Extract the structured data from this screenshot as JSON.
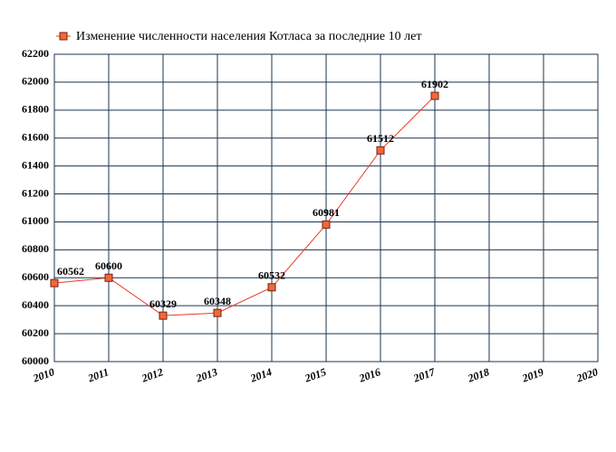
{
  "chart_data": {
    "type": "line",
    "x": [
      2010,
      2011,
      2012,
      2013,
      2014,
      2015,
      2016,
      2017
    ],
    "series": [
      {
        "name": "Изменение численности населения Котласа за последние 10 лет",
        "color": "#e83a2a",
        "marker_color": "#f0683a",
        "values": [
          60562,
          60600,
          60329,
          60348,
          60532,
          60981,
          61512,
          61902
        ]
      }
    ],
    "xlim": [
      2010,
      2020
    ],
    "xticks": [
      2010,
      2011,
      2012,
      2013,
      2014,
      2015,
      2016,
      2017,
      2018,
      2019,
      2020
    ],
    "ylim": [
      60000,
      62200
    ],
    "yticks": [
      60000,
      60200,
      60400,
      60600,
      60800,
      61000,
      61200,
      61400,
      61600,
      61800,
      62000,
      62200
    ],
    "grid": true
  }
}
